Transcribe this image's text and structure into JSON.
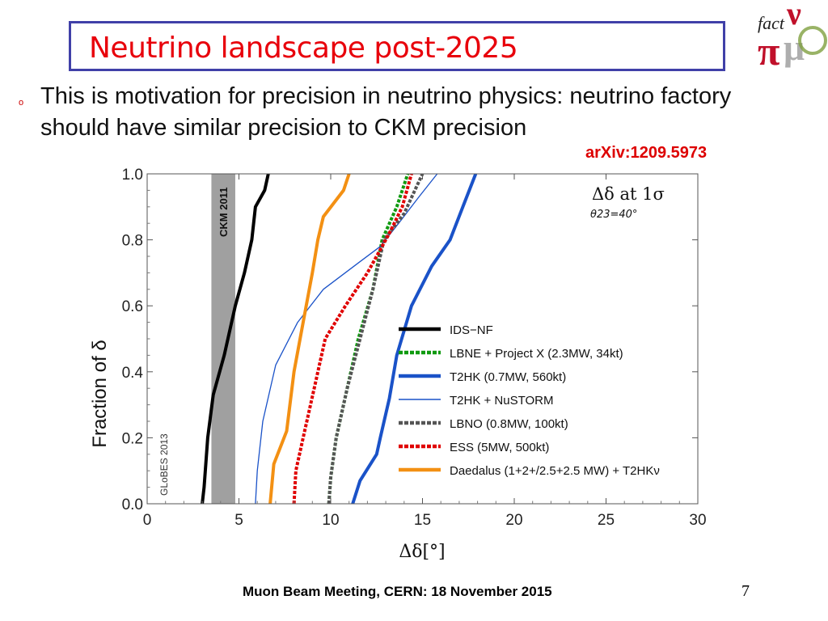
{
  "slide": {
    "title": "Neutrino landscape post-2025",
    "bullet": "This is motivation for precision in neutrino physics: neutrino factory should have similar precision to CKM precision",
    "bullet_marker": "o",
    "reference": "arXiv:1209.5973",
    "footer": "Muon Beam Meeting, CERN: 18 November 2015",
    "page_number": "7",
    "logo_text": "fact"
  },
  "colors": {
    "title": "#e8000b",
    "title_border": "#4040a8",
    "reference": "#dd0000"
  },
  "chart_data": {
    "type": "line",
    "title": "",
    "xlabel": "Δδ[°]",
    "ylabel": "Fraction of δ",
    "xlim": [
      0,
      30
    ],
    "ylim": [
      0,
      1
    ],
    "xticks": [
      "0",
      "5",
      "10",
      "15",
      "20",
      "25",
      "30"
    ],
    "yticks": [
      "0.0",
      "0.2",
      "0.4",
      "0.6",
      "0.8",
      "1.0"
    ],
    "annotation_main": "Δδ at 1σ",
    "annotation_sub": "θ23=40°",
    "watermark": "GLoBES 2013",
    "band": {
      "label": "CKM 2011",
      "x_from": 3.5,
      "x_to": 4.8,
      "color": "#a0a0a0"
    },
    "legend_position": "center-right",
    "series": [
      {
        "name": "IDS−NF",
        "color": "#000000",
        "style": "solid",
        "weight": "thick",
        "points": [
          [
            3.0,
            0
          ],
          [
            3.1,
            0.05
          ],
          [
            3.3,
            0.2
          ],
          [
            3.6,
            0.33
          ],
          [
            4.2,
            0.45
          ],
          [
            4.8,
            0.6
          ],
          [
            5.3,
            0.7
          ],
          [
            5.7,
            0.8
          ],
          [
            5.9,
            0.9
          ],
          [
            6.4,
            0.95
          ],
          [
            6.6,
            1.0
          ]
        ]
      },
      {
        "name": "LBNE + Project X (2.3MW, 34kt)",
        "color": "#109a10",
        "style": "dashed",
        "weight": "thick",
        "points": [
          [
            9.9,
            0
          ],
          [
            10.0,
            0.08
          ],
          [
            10.3,
            0.2
          ],
          [
            10.9,
            0.35
          ],
          [
            11.5,
            0.5
          ],
          [
            12.3,
            0.65
          ],
          [
            12.8,
            0.8
          ],
          [
            13.6,
            0.9
          ],
          [
            14.2,
            1.0
          ]
        ]
      },
      {
        "name": "T2HK (0.7MW, 560kt)",
        "color": "#1a52c8",
        "style": "solid",
        "weight": "thick",
        "points": [
          [
            11.2,
            0
          ],
          [
            11.6,
            0.07
          ],
          [
            12.5,
            0.15
          ],
          [
            12.7,
            0.2
          ],
          [
            13.2,
            0.32
          ],
          [
            13.6,
            0.45
          ],
          [
            14.4,
            0.6
          ],
          [
            15.5,
            0.72
          ],
          [
            16.5,
            0.8
          ],
          [
            17.2,
            0.9
          ],
          [
            17.9,
            1.0
          ]
        ]
      },
      {
        "name": "T2HK + NuSTORM",
        "color": "#1a52c8",
        "style": "solid",
        "weight": "thin",
        "points": [
          [
            5.9,
            0
          ],
          [
            6.0,
            0.1
          ],
          [
            6.3,
            0.25
          ],
          [
            7.0,
            0.42
          ],
          [
            8.2,
            0.55
          ],
          [
            9.6,
            0.65
          ],
          [
            11.5,
            0.73
          ],
          [
            12.7,
            0.78
          ],
          [
            13.7,
            0.85
          ],
          [
            14.8,
            0.93
          ],
          [
            15.8,
            1.0
          ]
        ]
      },
      {
        "name": "LBNO (0.8MW, 100kt)",
        "color": "#555555",
        "style": "dashed",
        "weight": "thick",
        "points": [
          [
            9.9,
            0
          ],
          [
            10.0,
            0.08
          ],
          [
            10.3,
            0.2
          ],
          [
            10.9,
            0.35
          ],
          [
            11.6,
            0.5
          ],
          [
            12.3,
            0.65
          ],
          [
            12.9,
            0.8
          ],
          [
            14.0,
            0.88
          ],
          [
            15.0,
            1.0
          ]
        ]
      },
      {
        "name": "ESS (5MW, 500kt)",
        "color": "#e00000",
        "style": "dashed",
        "weight": "thick",
        "points": [
          [
            8.0,
            0
          ],
          [
            8.1,
            0.1
          ],
          [
            8.5,
            0.2
          ],
          [
            9.1,
            0.35
          ],
          [
            9.7,
            0.5
          ],
          [
            10.8,
            0.6
          ],
          [
            12.0,
            0.7
          ],
          [
            13.2,
            0.82
          ],
          [
            13.9,
            0.9
          ],
          [
            14.4,
            1.0
          ]
        ]
      },
      {
        "name": "Daedalus (1+2+/2.5+2.5 MW) + T2HKν",
        "color": "#f39013",
        "style": "solid",
        "weight": "thick",
        "points": [
          [
            6.7,
            0
          ],
          [
            6.9,
            0.12
          ],
          [
            7.6,
            0.22
          ],
          [
            8.0,
            0.4
          ],
          [
            8.5,
            0.55
          ],
          [
            9.0,
            0.7
          ],
          [
            9.3,
            0.8
          ],
          [
            9.6,
            0.87
          ],
          [
            10.7,
            0.95
          ],
          [
            11.0,
            1.0
          ]
        ]
      }
    ]
  }
}
